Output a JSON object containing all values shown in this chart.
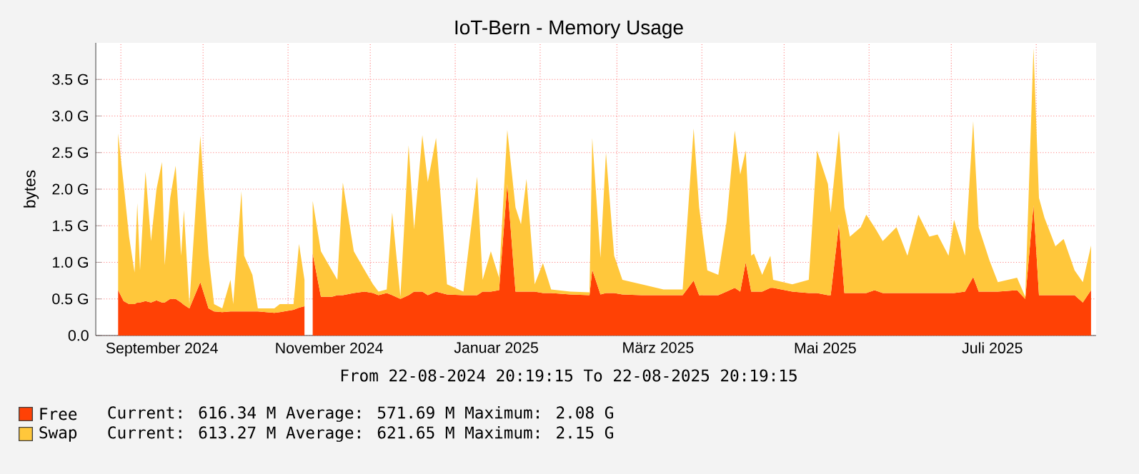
{
  "chart_data": {
    "type": "area",
    "title": "IoT-Bern - Memory Usage",
    "ylabel": "bytes",
    "stacked": true,
    "grid": true,
    "legend": "bottom",
    "annotations": [
      "From 22-08-2024 20:19:15 To 22-08-2025 20:19:15",
      "Current: 616.34 M Average: 571.69 M Maximum: 2.08 G",
      "Current: 613.27 M Average: 621.65 M Maximum: 2.15 G"
    ],
    "xlim": [
      "2024-08-22T20:19",
      "2025-08-22T20:19"
    ],
    "xticks": [
      {
        "value": "2024-09-01",
        "label": null
      },
      {
        "value": "2024-10-01",
        "label": null
      },
      {
        "value": "2024-11-01",
        "label": null
      },
      {
        "value": "2024-12-01",
        "label": null
      },
      {
        "value": "2025-01-01",
        "label": null
      },
      {
        "value": "2025-02-01",
        "label": null
      },
      {
        "value": "2025-03-01",
        "label": null
      },
      {
        "value": "2025-04-01",
        "label": null
      },
      {
        "value": "2025-05-01",
        "label": null
      },
      {
        "value": "2025-06-01",
        "label": null
      },
      {
        "value": "2025-07-01",
        "label": null
      },
      {
        "value": "2025-08-01",
        "label": null
      },
      {
        "value": "2024-09-16",
        "label": "September 2024"
      },
      {
        "value": "2024-11-16",
        "label": "November 2024"
      },
      {
        "value": "2025-01-16",
        "label": "Januar 2025"
      },
      {
        "value": "2025-03-16",
        "label": "März 2025"
      },
      {
        "value": "2025-05-16",
        "label": "Mai 2025"
      },
      {
        "value": "2025-07-16",
        "label": "Juli 2025"
      }
    ],
    "ylim": [
      0,
      4.0
    ],
    "yticks": [
      {
        "value": 0,
        "label": "0.0"
      },
      {
        "value": 0.5,
        "label": "0.5 G"
      },
      {
        "value": 1.0,
        "label": "1.0 G"
      },
      {
        "value": 1.5,
        "label": "1.5 G"
      },
      {
        "value": 2.0,
        "label": "2.0 G"
      },
      {
        "value": 2.5,
        "label": "2.5 G"
      },
      {
        "value": 3.0,
        "label": "3.0 G"
      },
      {
        "value": 3.5,
        "label": "3.5 G"
      }
    ],
    "x": [
      "2024-08-31",
      "2024-09-02",
      "2024-09-04",
      "2024-09-06",
      "2024-09-07",
      "2024-09-08",
      "2024-09-10",
      "2024-09-12",
      "2024-09-14",
      "2024-09-16",
      "2024-09-17",
      "2024-09-19",
      "2024-09-21",
      "2024-09-23",
      "2024-09-24",
      "2024-09-26",
      "2024-09-30",
      "2024-10-03",
      "2024-10-05",
      "2024-10-08",
      "2024-10-11",
      "2024-10-12",
      "2024-10-15",
      "2024-10-16",
      "2024-10-19",
      "2024-10-21",
      "2024-10-27",
      "2024-10-29",
      "2024-11-03",
      "2024-11-05",
      "2024-11-07",
      "2024-11-08",
      "2024-11-10",
      "2024-11-13",
      "2024-11-17",
      "2024-11-19",
      "2024-11-21",
      "2024-11-25",
      "2024-11-29",
      "2024-12-02",
      "2024-12-04",
      "2024-12-07",
      "2024-12-09",
      "2024-12-12",
      "2024-12-15",
      "2024-12-17",
      "2024-12-20",
      "2024-12-22",
      "2024-12-25",
      "2024-12-27",
      "2024-12-29",
      "2025-01-04",
      "2025-01-09",
      "2025-01-11",
      "2025-01-14",
      "2025-01-17",
      "2025-01-20",
      "2025-01-23",
      "2025-01-25",
      "2025-01-27",
      "2025-01-30",
      "2025-02-02",
      "2025-02-05",
      "2025-02-12",
      "2025-02-19",
      "2025-02-20",
      "2025-02-23",
      "2025-02-25",
      "2025-02-28",
      "2025-03-03",
      "2025-03-10",
      "2025-03-18",
      "2025-03-25",
      "2025-03-29",
      "2025-03-31",
      "2025-04-03",
      "2025-04-07",
      "2025-04-10",
      "2025-04-13",
      "2025-04-15",
      "2025-04-17",
      "2025-04-19",
      "2025-04-20",
      "2025-04-23",
      "2025-04-26",
      "2025-04-27",
      "2025-05-04",
      "2025-05-10",
      "2025-05-13",
      "2025-05-17",
      "2025-05-18",
      "2025-05-21",
      "2025-05-23",
      "2025-05-25",
      "2025-05-29",
      "2025-05-31",
      "2025-06-03",
      "2025-06-06",
      "2025-06-11",
      "2025-06-15",
      "2025-06-19",
      "2025-06-23",
      "2025-06-26",
      "2025-06-30",
      "2025-07-02",
      "2025-07-06",
      "2025-07-09",
      "2025-07-11",
      "2025-07-15",
      "2025-07-18",
      "2025-07-25",
      "2025-07-28",
      "2025-07-31",
      "2025-08-02",
      "2025-08-04",
      "2025-08-08",
      "2025-08-11",
      "2025-08-15",
      "2025-08-18",
      "2025-08-21"
    ],
    "series": [
      {
        "name": "Free",
        "color": "#ff4105",
        "values": [
          0.62,
          0.47,
          0.43,
          0.43,
          0.45,
          0.45,
          0.47,
          0.45,
          0.48,
          0.45,
          0.45,
          0.5,
          0.5,
          0.45,
          0.42,
          0.37,
          0.73,
          0.37,
          0.33,
          0.32,
          0.33,
          0.33,
          0.33,
          0.33,
          0.33,
          0.33,
          0.31,
          0.32,
          0.35,
          0.38,
          0.4,
          null,
          1.12,
          0.53,
          0.53,
          0.55,
          0.55,
          0.58,
          0.6,
          0.58,
          0.55,
          0.58,
          0.55,
          0.5,
          0.55,
          0.6,
          0.6,
          0.55,
          0.6,
          0.58,
          0.56,
          0.55,
          0.55,
          0.6,
          0.6,
          0.62,
          2.07,
          0.6,
          0.6,
          0.6,
          0.6,
          0.58,
          0.58,
          0.56,
          0.55,
          0.9,
          0.56,
          0.58,
          0.58,
          0.56,
          0.55,
          0.55,
          0.55,
          0.75,
          0.55,
          0.55,
          0.55,
          0.6,
          0.65,
          0.6,
          1.0,
          0.6,
          0.6,
          0.6,
          0.65,
          0.65,
          0.6,
          0.58,
          0.58,
          0.55,
          0.55,
          1.52,
          0.58,
          0.58,
          0.58,
          0.58,
          0.62,
          0.58,
          0.58,
          0.58,
          0.58,
          0.58,
          0.58,
          0.58,
          0.58,
          0.6,
          0.8,
          0.6,
          0.6,
          0.6,
          0.62,
          0.5,
          1.78,
          0.55,
          0.55,
          0.55,
          0.55,
          0.55,
          0.45,
          0.62
        ]
      },
      {
        "name": "Swap",
        "color": "#ffc73b",
        "values": [
          2.14,
          1.6,
          0.92,
          0.43,
          1.36,
          0.44,
          1.77,
          0.84,
          1.52,
          1.92,
          0.51,
          1.38,
          1.82,
          0.64,
          1.29,
          0.06,
          2.0,
          0.72,
          0.1,
          0.05,
          0.43,
          0.1,
          1.64,
          0.76,
          0.5,
          0.04,
          0.06,
          0.11,
          0.08,
          0.87,
          0.36,
          null,
          0.72,
          0.62,
          0.36,
          0.21,
          1.54,
          0.57,
          0.29,
          0.12,
          0.05,
          0.05,
          1.13,
          0.03,
          2.05,
          0.85,
          2.14,
          1.55,
          2.1,
          1.17,
          0.14,
          0.05,
          1.62,
          0.16,
          0.55,
          0.17,
          0.74,
          1.15,
          0.92,
          1.54,
          0.1,
          0.41,
          0.05,
          0.04,
          0.04,
          1.8,
          0.5,
          1.92,
          0.51,
          0.2,
          0.15,
          0.08,
          0.08,
          2.08,
          1.2,
          0.34,
          0.28,
          0.95,
          2.15,
          1.6,
          1.53,
          0.49,
          0.52,
          0.23,
          0.44,
          0.11,
          0.1,
          0.18,
          1.95,
          1.52,
          1.13,
          1.28,
          1.17,
          0.77,
          0.9,
          1.07,
          0.86,
          0.71,
          0.9,
          0.51,
          1.07,
          0.77,
          0.8,
          0.51,
          1.0,
          0.49,
          2.13,
          0.88,
          0.42,
          0.13,
          0.17,
          0.03,
          2.15,
          1.33,
          1.06,
          0.67,
          0.77,
          0.34,
          0.28,
          0.61
        ]
      }
    ]
  }
}
